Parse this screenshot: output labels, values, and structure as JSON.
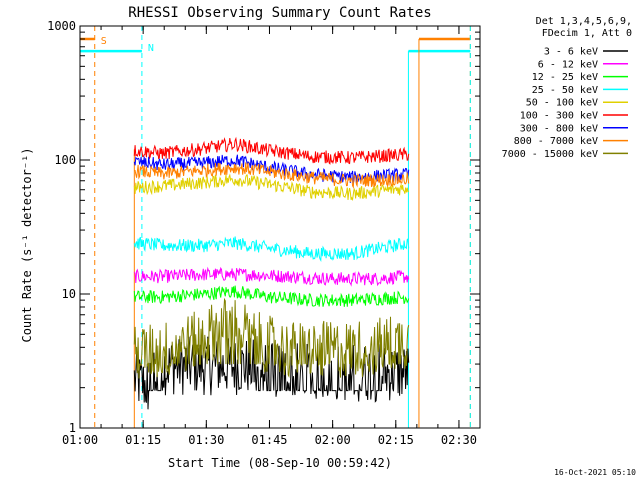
{
  "chart_data": {
    "type": "line",
    "title": "RHESSI Observing Summary Count Rates",
    "xlabel": "Start Time (08-Sep-10 00:59:42)",
    "ylabel": "Count Rate (s⁻¹ detector⁻¹)",
    "ylog": true,
    "ylim": [
      1,
      1000
    ],
    "xlim_minutes": [
      0.3,
      95.3
    ],
    "x_ticks": [
      {
        "t": 0.3,
        "label": "01:00"
      },
      {
        "t": 15.3,
        "label": "01:15"
      },
      {
        "t": 30.3,
        "label": "01:30"
      },
      {
        "t": 45.3,
        "label": "01:45"
      },
      {
        "t": 60.3,
        "label": "02:00"
      },
      {
        "t": 75.3,
        "label": "02:15"
      },
      {
        "t": 90.3,
        "label": "02:30"
      }
    ],
    "y_ticks": [
      {
        "v": 1,
        "label": "1"
      },
      {
        "v": 10,
        "label": "10"
      },
      {
        "v": 100,
        "label": "100"
      },
      {
        "v": 1000,
        "label": "1000"
      }
    ],
    "legend": {
      "header": [
        "Det 1,3,4,5,6,9,",
        "FDecim 1, Att 0"
      ],
      "placement": "right"
    },
    "series": [
      {
        "name": "3 - 6 keV",
        "color": "#000000",
        "x": [
          13.2,
          17,
          20,
          30,
          40,
          46,
          50,
          55,
          60,
          65,
          70,
          75,
          78.5
        ],
        "y": [
          2.3,
          2.0,
          2.9,
          2.9,
          2.9,
          2.6,
          2.6,
          2.6,
          2.6,
          2.6,
          2.6,
          2.6,
          2.6
        ]
      },
      {
        "name": "6 - 12 keV",
        "color": "#ff00ff",
        "x": [
          13.2,
          20,
          30,
          40,
          50,
          60,
          70,
          78.5
        ],
        "y": [
          13.5,
          13.5,
          14.0,
          14.0,
          13.5,
          13.0,
          13.0,
          13.5
        ]
      },
      {
        "name": "12 - 25 keV",
        "color": "#00ff00",
        "x": [
          13.2,
          20,
          30,
          37,
          45,
          55,
          65,
          78.5
        ],
        "y": [
          9.5,
          9.5,
          10.0,
          10.5,
          9.5,
          9.0,
          9.0,
          9.5
        ]
      },
      {
        "name": "25 - 50 keV",
        "color": "#00ffff",
        "x": [
          13.2,
          20,
          30,
          37,
          45,
          55,
          65,
          78.5
        ],
        "y": [
          24,
          23,
          23,
          24,
          22,
          20,
          20,
          24
        ]
      },
      {
        "name": "50 - 100 keV",
        "color": "#e0d000",
        "x": [
          13.2,
          20,
          30,
          37,
          45,
          55,
          65,
          78.5
        ],
        "y": [
          62,
          64,
          68,
          72,
          66,
          58,
          56,
          62
        ]
      },
      {
        "name": "100 - 300 keV",
        "color": "#ff0000",
        "x": [
          13.2,
          20,
          30,
          37,
          45,
          55,
          65,
          78.5
        ],
        "y": [
          118,
          112,
          122,
          132,
          118,
          106,
          104,
          110
        ]
      },
      {
        "name": "300 - 800 keV",
        "color": "#0000ff",
        "x": [
          13.2,
          20,
          30,
          37,
          45,
          55,
          65,
          78.5
        ],
        "y": [
          97,
          92,
          95,
          100,
          88,
          78,
          74,
          78
        ]
      },
      {
        "name": "800 - 7000 keV",
        "color": "#ff8000",
        "x": [
          13.2,
          20,
          30,
          37,
          45,
          55,
          65,
          78.5
        ],
        "y": [
          83,
          79,
          84,
          88,
          82,
          74,
          70,
          72
        ]
      },
      {
        "name": "7000 - 15000 keV",
        "color": "#808000",
        "x": [
          13.2,
          20,
          28,
          33,
          37,
          42,
          50,
          60,
          70,
          78.5
        ],
        "y": [
          3.5,
          3.8,
          4.5,
          5.5,
          6.0,
          4.5,
          3.8,
          3.8,
          4.0,
          4.6
        ]
      }
    ],
    "flags": [
      {
        "label": "S",
        "color": "#ff8000",
        "start": 0.3,
        "end": 3.8,
        "level": 800
      },
      {
        "label": "S",
        "color": "#ff8000",
        "start": 80.8,
        "end": 93.0,
        "level": 800
      },
      {
        "label": "N",
        "color": "#00ffff",
        "start": 0.3,
        "end": 15.0,
        "level": 650
      },
      {
        "label": "N",
        "color": "#00ffff",
        "start": 78.3,
        "end": 93.0,
        "level": 650
      }
    ],
    "grid": false
  },
  "footer": {
    "timestamp": "16-Oct-2021 05:10"
  }
}
